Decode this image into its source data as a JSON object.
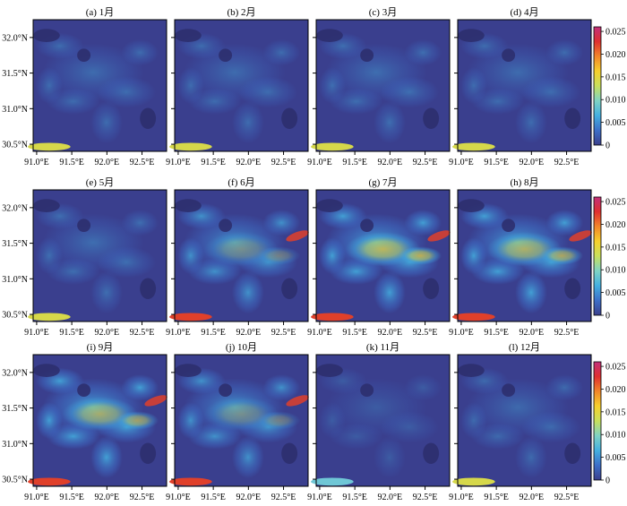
{
  "chart_data": {
    "type": "heatmap",
    "panels": [
      {
        "label": "(a) 1月",
        "level": 0.2
      },
      {
        "label": "(b) 2月",
        "level": 0.2
      },
      {
        "label": "(c) 3月",
        "level": 0.22
      },
      {
        "label": "(d) 4月",
        "level": 0.2
      },
      {
        "label": "(e) 5月",
        "level": 0.22
      },
      {
        "label": "(f) 6月",
        "level": 0.55
      },
      {
        "label": "(g) 7月",
        "level": 0.8
      },
      {
        "label": "(h) 8月",
        "level": 0.75
      },
      {
        "label": "(i) 9月",
        "level": 0.72
      },
      {
        "label": "(j) 10月",
        "level": 0.55
      },
      {
        "label": "(k) 11月",
        "level": 0.05
      },
      {
        "label": "(l) 12月",
        "level": 0.18
      }
    ],
    "x_ticks": [
      "91.0°E",
      "91.5°E",
      "92.0°E",
      "92.5°E"
    ],
    "x_tick_values": [
      91.0,
      91.5,
      92.0,
      92.5
    ],
    "xlim": [
      90.95,
      92.85
    ],
    "y_ticks": [
      "32.0°N",
      "31.5°N",
      "31.0°N",
      "30.5°N"
    ],
    "y_tick_values": [
      32.0,
      31.5,
      31.0,
      30.5
    ],
    "ylim": [
      30.4,
      32.25
    ],
    "colorbar": {
      "ticks": [
        "0.025",
        "0.020",
        "0.015",
        "0.010",
        "0.005",
        "0"
      ],
      "tick_values": [
        0.025,
        0.02,
        0.015,
        0.01,
        0.005,
        0
      ],
      "range": [
        0,
        0.026
      ],
      "colors": [
        "#3b3f8c",
        "#3d6fc8",
        "#44b0e0",
        "#7fd3c4",
        "#c8e05c",
        "#f6d02c",
        "#f2862a",
        "#df3030",
        "#c2307a"
      ]
    }
  }
}
